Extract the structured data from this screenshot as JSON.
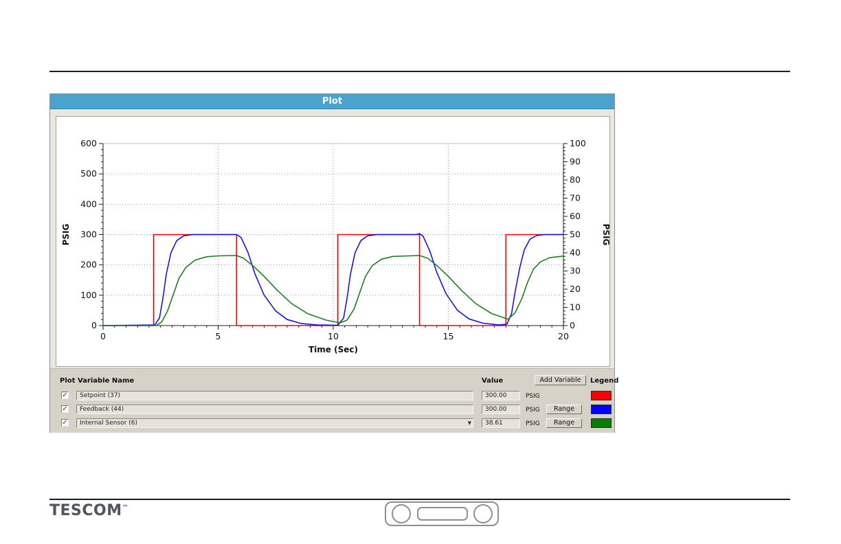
{
  "window": {
    "title": "Plot",
    "titlebar_color": "#4aa3cd"
  },
  "chart_data": {
    "type": "line",
    "title": "",
    "xlabel": "Time (Sec)",
    "ylabel_left": "PSIG",
    "ylabel_right": "PSIG",
    "xlim": [
      0,
      20
    ],
    "ylim_left": [
      0,
      600
    ],
    "ylim_right": [
      0,
      100
    ],
    "x_ticks": [
      0,
      5,
      10,
      15,
      20
    ],
    "x_minor_step": 0.5,
    "y_ticks_left": [
      0,
      100,
      200,
      300,
      400,
      500,
      600
    ],
    "y_left_minor_step": 20,
    "y_ticks_right": [
      0,
      10,
      20,
      30,
      40,
      50,
      60,
      70,
      80,
      90,
      100
    ],
    "y_right_minor_step": 2,
    "grid": true,
    "legend_position": "external-table",
    "series": [
      {
        "name": "Setpoint (37)",
        "color": "#f40000",
        "axis": "left",
        "points": [
          [
            0,
            0
          ],
          [
            2.2,
            0
          ],
          [
            2.2,
            300
          ],
          [
            5.8,
            300
          ],
          [
            5.8,
            0
          ],
          [
            10.2,
            0
          ],
          [
            10.2,
            300
          ],
          [
            13.75,
            300
          ],
          [
            13.75,
            0
          ],
          [
            17.5,
            0
          ],
          [
            17.5,
            300
          ],
          [
            20,
            300
          ]
        ]
      },
      {
        "name": "Feedback (44)",
        "color": "#1515d8",
        "axis": "left",
        "points": [
          [
            0,
            0
          ],
          [
            2.25,
            2
          ],
          [
            2.45,
            25
          ],
          [
            2.6,
            90
          ],
          [
            2.75,
            170
          ],
          [
            2.95,
            240
          ],
          [
            3.2,
            280
          ],
          [
            3.5,
            296
          ],
          [
            3.9,
            300
          ],
          [
            5.8,
            300
          ],
          [
            6.0,
            290
          ],
          [
            6.3,
            240
          ],
          [
            6.6,
            170
          ],
          [
            7.0,
            100
          ],
          [
            7.5,
            48
          ],
          [
            8.0,
            20
          ],
          [
            8.6,
            7
          ],
          [
            9.3,
            2
          ],
          [
            10.2,
            1
          ],
          [
            10.45,
            25
          ],
          [
            10.6,
            90
          ],
          [
            10.75,
            170
          ],
          [
            10.95,
            240
          ],
          [
            11.2,
            280
          ],
          [
            11.5,
            296
          ],
          [
            11.9,
            300
          ],
          [
            13.6,
            300
          ],
          [
            13.75,
            303
          ],
          [
            13.9,
            295
          ],
          [
            14.2,
            245
          ],
          [
            14.5,
            175
          ],
          [
            14.9,
            105
          ],
          [
            15.4,
            50
          ],
          [
            15.9,
            22
          ],
          [
            16.5,
            8
          ],
          [
            17.2,
            2
          ],
          [
            17.55,
            5
          ],
          [
            17.75,
            40
          ],
          [
            17.9,
            110
          ],
          [
            18.1,
            190
          ],
          [
            18.3,
            250
          ],
          [
            18.55,
            285
          ],
          [
            18.85,
            297
          ],
          [
            19.2,
            300
          ],
          [
            20,
            300
          ]
        ]
      },
      {
        "name": "Internal Sensor (6)",
        "color": "#1e7d1e",
        "axis": "right",
        "points": [
          [
            0,
            0
          ],
          [
            2.3,
            0
          ],
          [
            2.55,
            2
          ],
          [
            2.8,
            8
          ],
          [
            3.05,
            17
          ],
          [
            3.3,
            26
          ],
          [
            3.6,
            32
          ],
          [
            4.0,
            36
          ],
          [
            4.5,
            37.8
          ],
          [
            5.0,
            38.3
          ],
          [
            5.8,
            38.5
          ],
          [
            6.1,
            37
          ],
          [
            6.5,
            33
          ],
          [
            7.0,
            27
          ],
          [
            7.6,
            19
          ],
          [
            8.2,
            12
          ],
          [
            8.9,
            6.5
          ],
          [
            9.7,
            3
          ],
          [
            10.3,
            1.5
          ],
          [
            10.6,
            3
          ],
          [
            10.9,
            9
          ],
          [
            11.15,
            18
          ],
          [
            11.4,
            27
          ],
          [
            11.7,
            33
          ],
          [
            12.1,
            36.5
          ],
          [
            12.6,
            38
          ],
          [
            13.75,
            38.5
          ],
          [
            14.1,
            37
          ],
          [
            14.5,
            33
          ],
          [
            15.0,
            27
          ],
          [
            15.6,
            19
          ],
          [
            16.2,
            12
          ],
          [
            16.9,
            6.5
          ],
          [
            17.6,
            3.5
          ],
          [
            17.9,
            7
          ],
          [
            18.2,
            15
          ],
          [
            18.45,
            24
          ],
          [
            18.7,
            31
          ],
          [
            19.0,
            35
          ],
          [
            19.4,
            37.3
          ],
          [
            20,
            38.2
          ]
        ]
      }
    ]
  },
  "panel": {
    "headers": {
      "plot": "Plot",
      "variable_name": "Variable Name",
      "value": "Value",
      "legend": "Legend"
    },
    "add_variable_button": "Add Variable",
    "range_button": "Range",
    "rows": [
      {
        "checked": true,
        "name": "Setpoint (37)",
        "value": "300.00",
        "unit": "PSIG",
        "has_range": false,
        "has_dropdown": false,
        "color": "#ff0000"
      },
      {
        "checked": true,
        "name": "Feedback (44)",
        "value": "300.00",
        "unit": "PSIG",
        "has_range": true,
        "has_dropdown": false,
        "color": "#0000ff"
      },
      {
        "checked": true,
        "name": "Internal Sensor (6)",
        "value": "38.61",
        "unit": "PSIG",
        "has_range": true,
        "has_dropdown": true,
        "color": "#008000"
      }
    ]
  },
  "footer": {
    "brand": "TESCOM",
    "trademark": "™"
  }
}
